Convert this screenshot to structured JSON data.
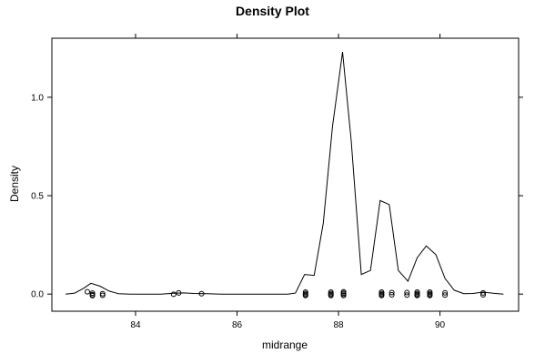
{
  "chart_data": {
    "type": "line",
    "title": "Density Plot",
    "xlabel": "midrange",
    "ylabel": "Density",
    "xlim": [
      82.35,
      91.55
    ],
    "ylim": [
      -0.087,
      1.3
    ],
    "x_ticks": [
      84,
      86,
      88,
      90
    ],
    "x_tick_labels": [
      "84",
      "86",
      "88",
      "90"
    ],
    "y_ticks": [
      0,
      0.5,
      1.0
    ],
    "y_tick_labels": [
      "0.0",
      "0.5",
      "1.0"
    ],
    "grid": false,
    "series": [
      {
        "values": [
          {
            "x": 82.62,
            "y": 0.0
          },
          {
            "x": 82.8,
            "y": 0.005
          },
          {
            "x": 82.98,
            "y": 0.03
          },
          {
            "x": 83.12,
            "y": 0.055
          },
          {
            "x": 83.3,
            "y": 0.04
          },
          {
            "x": 83.48,
            "y": 0.015
          },
          {
            "x": 83.66,
            "y": 0.002
          },
          {
            "x": 83.9,
            "y": 0.0
          },
          {
            "x": 84.5,
            "y": 0.0
          },
          {
            "x": 84.75,
            "y": 0.004
          },
          {
            "x": 84.95,
            "y": 0.006
          },
          {
            "x": 85.15,
            "y": 0.003
          },
          {
            "x": 85.4,
            "y": 0.002
          },
          {
            "x": 85.7,
            "y": 0.0
          },
          {
            "x": 86.5,
            "y": 0.0
          },
          {
            "x": 87.0,
            "y": 0.0
          },
          {
            "x": 87.15,
            "y": 0.005
          },
          {
            "x": 87.33,
            "y": 0.1
          },
          {
            "x": 87.52,
            "y": 0.095
          },
          {
            "x": 87.7,
            "y": 0.36
          },
          {
            "x": 87.88,
            "y": 0.85
          },
          {
            "x": 88.08,
            "y": 1.23
          },
          {
            "x": 88.25,
            "y": 0.78
          },
          {
            "x": 88.45,
            "y": 0.1
          },
          {
            "x": 88.63,
            "y": 0.12
          },
          {
            "x": 88.82,
            "y": 0.475
          },
          {
            "x": 89.0,
            "y": 0.455
          },
          {
            "x": 89.18,
            "y": 0.12
          },
          {
            "x": 89.37,
            "y": 0.065
          },
          {
            "x": 89.55,
            "y": 0.185
          },
          {
            "x": 89.73,
            "y": 0.245
          },
          {
            "x": 89.92,
            "y": 0.2
          },
          {
            "x": 90.1,
            "y": 0.08
          },
          {
            "x": 90.28,
            "y": 0.02
          },
          {
            "x": 90.47,
            "y": 0.002
          },
          {
            "x": 90.65,
            "y": 0.003
          },
          {
            "x": 90.85,
            "y": 0.01
          },
          {
            "x": 91.05,
            "y": 0.004
          },
          {
            "x": 91.25,
            "y": 0.0
          }
        ]
      }
    ],
    "rug": [
      {
        "x": 83.05,
        "y": 0.012
      },
      {
        "x": 83.15,
        "y": 0.005
      },
      {
        "x": 83.15,
        "y": -0.003
      },
      {
        "x": 83.15,
        "y": -0.008
      },
      {
        "x": 83.35,
        "y": 0.002
      },
      {
        "x": 83.35,
        "y": -0.006
      },
      {
        "x": 84.75,
        "y": -0.001
      },
      {
        "x": 84.85,
        "y": 0.006
      },
      {
        "x": 85.3,
        "y": 0.002
      },
      {
        "x": 87.35,
        "y": 0.01
      },
      {
        "x": 87.35,
        "y": 0.003
      },
      {
        "x": 87.35,
        "y": -0.003
      },
      {
        "x": 87.35,
        "y": -0.007
      },
      {
        "x": 87.85,
        "y": 0.01
      },
      {
        "x": 87.85,
        "y": 0.003
      },
      {
        "x": 87.85,
        "y": -0.003
      },
      {
        "x": 87.85,
        "y": -0.007
      },
      {
        "x": 88.1,
        "y": 0.012
      },
      {
        "x": 88.1,
        "y": 0.005
      },
      {
        "x": 88.1,
        "y": -0.001
      },
      {
        "x": 88.1,
        "y": -0.007
      },
      {
        "x": 88.85,
        "y": 0.01
      },
      {
        "x": 88.85,
        "y": 0.003
      },
      {
        "x": 88.85,
        "y": -0.003
      },
      {
        "x": 88.85,
        "y": -0.007
      },
      {
        "x": 89.05,
        "y": 0.008
      },
      {
        "x": 89.05,
        "y": -0.004
      },
      {
        "x": 89.35,
        "y": 0.008
      },
      {
        "x": 89.35,
        "y": -0.005
      },
      {
        "x": 89.55,
        "y": 0.01
      },
      {
        "x": 89.55,
        "y": 0.003
      },
      {
        "x": 89.55,
        "y": -0.003
      },
      {
        "x": 89.55,
        "y": -0.007
      },
      {
        "x": 89.8,
        "y": 0.01
      },
      {
        "x": 89.8,
        "y": 0.003
      },
      {
        "x": 89.8,
        "y": -0.003
      },
      {
        "x": 89.8,
        "y": -0.007
      },
      {
        "x": 90.1,
        "y": 0.007
      },
      {
        "x": 90.1,
        "y": -0.005
      },
      {
        "x": 90.85,
        "y": 0.006
      },
      {
        "x": 90.85,
        "y": -0.004
      }
    ]
  }
}
